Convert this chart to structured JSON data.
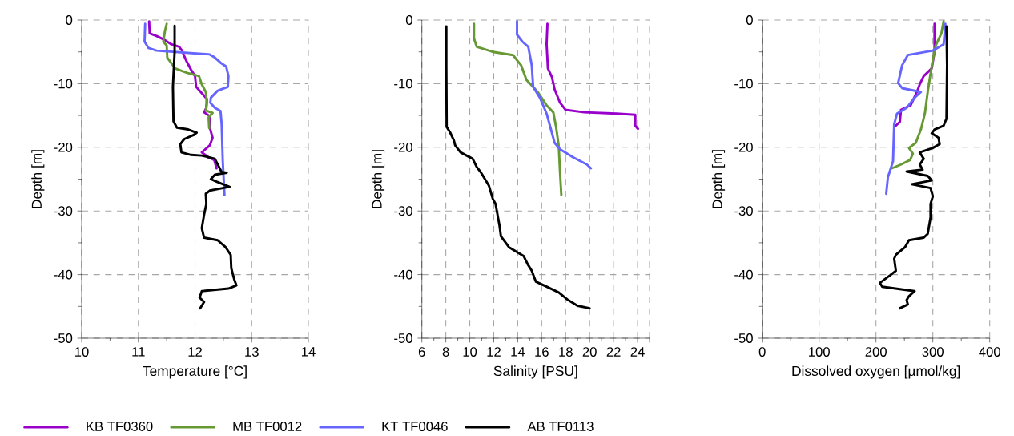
{
  "chart_data": [
    {
      "type": "line",
      "xlabel": "Temperature [°C]",
      "ylabel": "Depth [m]",
      "xlim": [
        10,
        14
      ],
      "ylim": [
        -50,
        0
      ],
      "xticks": [
        10,
        11,
        12,
        13,
        14
      ],
      "yticks": [
        -50,
        -40,
        -30,
        -20,
        -10,
        0
      ],
      "grid": true,
      "legend": "bottom",
      "series": [
        {
          "name": "KB TF0360",
          "color": "#9900cc",
          "x": [
            11.19,
            11.2,
            11.32,
            11.46,
            11.58,
            11.72,
            11.77,
            11.84,
            11.93,
            12.0,
            12.02,
            12.12,
            12.21,
            12.2,
            12.16,
            12.26,
            12.27,
            12.31,
            12.26,
            12.12,
            12.24,
            12.34,
            12.38
          ],
          "values": [
            -0.2,
            -2.1,
            -2.5,
            -3.1,
            -3.8,
            -4.2,
            -4.8,
            -6.3,
            -7.8,
            -8.8,
            -10.5,
            -11.5,
            -12.4,
            -13.8,
            -14.5,
            -15.1,
            -17.2,
            -18.5,
            -19.7,
            -20.8,
            -21.6,
            -22.0,
            -23.3
          ]
        },
        {
          "name": "MB TF0012",
          "color": "#669933",
          "x": [
            11.5,
            11.47,
            11.44,
            11.5,
            11.51,
            11.65,
            11.86,
            12.07,
            12.12,
            12.19,
            12.21,
            12.19,
            12.31,
            12.24,
            12.25
          ],
          "values": [
            -0.6,
            -1.7,
            -3.4,
            -4.0,
            -5.9,
            -7.6,
            -8.3,
            -8.8,
            -10.1,
            -11.3,
            -13.0,
            -14.2,
            -14.6,
            -15.3,
            -17.0
          ]
        },
        {
          "name": "KT TF0046",
          "color": "#6666ff",
          "x": [
            11.12,
            11.11,
            11.18,
            11.32,
            12.26,
            12.35,
            12.45,
            12.55,
            12.59,
            12.58,
            12.4,
            12.28,
            12.27,
            12.35,
            12.45,
            12.47,
            12.49,
            12.52
          ],
          "values": [
            -0.6,
            -3.4,
            -4.4,
            -4.8,
            -5.4,
            -5.9,
            -6.7,
            -7.3,
            -8.8,
            -10.5,
            -11.1,
            -12.2,
            -13.0,
            -13.8,
            -14.3,
            -16.4,
            -22.2,
            -27.5
          ]
        },
        {
          "name": "AB TF0113",
          "color": "#000000",
          "x": [
            11.64,
            11.64,
            11.61,
            11.62,
            11.68,
            11.88,
            12.03,
            11.97,
            11.81,
            11.74,
            11.76,
            11.93,
            12.12,
            12.35,
            12.47,
            12.56,
            12.35,
            12.28,
            12.38,
            12.61,
            12.49,
            12.26,
            12.19,
            12.2,
            12.16,
            12.12,
            12.16,
            12.4,
            12.54,
            12.63,
            12.64,
            12.69,
            12.73,
            12.59,
            12.12,
            12.08,
            12.16,
            12.09
          ],
          "values": [
            -0.9,
            -5.0,
            -10.5,
            -15.9,
            -16.9,
            -17.2,
            -17.7,
            -18.1,
            -18.7,
            -19.5,
            -20.8,
            -21.2,
            -21.3,
            -21.8,
            -23.9,
            -24.0,
            -24.3,
            -25.0,
            -25.4,
            -26.2,
            -26.4,
            -26.8,
            -27.3,
            -28.9,
            -30.6,
            -32.7,
            -34.2,
            -34.6,
            -35.7,
            -36.9,
            -39.0,
            -40.7,
            -41.7,
            -42.2,
            -42.6,
            -43.6,
            -44.3,
            -45.3
          ]
        }
      ]
    },
    {
      "type": "line",
      "xlabel": "Salinity [PSU]",
      "ylabel": "Depth [m]",
      "xlim": [
        6,
        25
      ],
      "ylim": [
        -50,
        0
      ],
      "xticks": [
        6,
        8,
        10,
        12,
        14,
        16,
        18,
        20,
        22,
        24,
        {
          "value": 25,
          "label": null
        }
      ],
      "yticks": [
        -50,
        -40,
        -30,
        -20,
        -10,
        0
      ],
      "grid": true,
      "series": [
        {
          "color": "#9900cc",
          "x": [
            16.48,
            16.41,
            16.52,
            16.86,
            17.08,
            17.53,
            17.98,
            19.55,
            22.24,
            23.81,
            23.81,
            24.03
          ],
          "values": [
            -0.6,
            -3.8,
            -7.6,
            -9.0,
            -10.9,
            -13.0,
            -14.1,
            -14.5,
            -14.7,
            -14.9,
            -16.6,
            -17.1
          ]
        },
        {
          "color": "#669933",
          "x": [
            10.35,
            10.35,
            10.58,
            11.92,
            13.61,
            13.94,
            14.28,
            14.73,
            15.29,
            15.74,
            16.41,
            16.97,
            17.2,
            17.42,
            17.53,
            17.64
          ],
          "values": [
            -0.6,
            -2.9,
            -4.2,
            -5.0,
            -5.5,
            -6.3,
            -7.1,
            -9.4,
            -10.5,
            -11.5,
            -13.4,
            -14.5,
            -16.8,
            -19.7,
            -23.9,
            -27.5
          ]
        },
        {
          "color": "#6666ff",
          "x": [
            13.94,
            13.94,
            14.39,
            14.88,
            15.17,
            15.29,
            15.85,
            16.41,
            17.08,
            17.53,
            18.65,
            19.77,
            20.11
          ],
          "values": [
            -0.2,
            -2.3,
            -3.4,
            -4.2,
            -7.1,
            -10.5,
            -12.2,
            -14.7,
            -19.3,
            -20.3,
            -21.6,
            -22.7,
            -23.3
          ]
        },
        {
          "color": "#000000",
          "x": [
            8.04,
            8.04,
            8.07,
            8.34,
            8.67,
            8.78,
            9.23,
            10.24,
            10.58,
            10.91,
            11.59,
            11.92,
            12.15,
            12.48,
            12.6,
            13.27,
            14.5,
            14.84,
            15.17,
            15.51,
            16.41,
            17.42,
            18.2,
            18.99,
            20.0
          ],
          "values": [
            -1.0,
            -7.1,
            -16.8,
            -17.6,
            -18.9,
            -19.7,
            -20.8,
            -21.8,
            -23.1,
            -23.9,
            -26.0,
            -28.1,
            -28.9,
            -32.3,
            -34.0,
            -35.7,
            -37.1,
            -38.4,
            -39.4,
            -41.1,
            -41.9,
            -42.8,
            -44.0,
            -44.9,
            -45.3
          ]
        }
      ]
    },
    {
      "type": "line",
      "xlabel": "Dissolved oxygen [µmol/kg]",
      "ylabel": "Depth [m]",
      "xlim": [
        0,
        400
      ],
      "ylim": [
        -50,
        0
      ],
      "xticks": [
        0,
        100,
        200,
        300,
        400
      ],
      "yticks": [
        -50,
        -40,
        -30,
        -20,
        -10,
        0
      ],
      "grid": true,
      "series": [
        {
          "color": "#9900cc",
          "x": [
            303,
            303,
            298,
            284,
            277,
            272,
            261,
            244,
            242,
            235
          ],
          "values": [
            -0.6,
            -5.0,
            -7.6,
            -8.8,
            -10.1,
            -11.3,
            -13.4,
            -14.1,
            -16.0,
            -16.6
          ]
        },
        {
          "color": "#669933",
          "x": [
            319,
            315,
            305,
            300,
            296,
            291,
            286,
            279,
            270,
            258,
            265,
            260,
            244,
            228
          ],
          "values": [
            -0.2,
            -2.1,
            -4.0,
            -6.3,
            -8.4,
            -11.3,
            -14.7,
            -17.2,
            -19.3,
            -20.1,
            -21.0,
            -22.0,
            -22.7,
            -23.3
          ]
        },
        {
          "color": "#6666ff",
          "x": [
            322,
            319,
            300,
            256,
            246,
            239,
            246,
            279,
            268,
            254,
            237,
            232,
            230,
            221,
            218
          ],
          "values": [
            -0.6,
            -3.8,
            -4.8,
            -5.5,
            -7.1,
            -9.9,
            -10.7,
            -11.3,
            -12.2,
            -13.8,
            -14.7,
            -16.4,
            -22.2,
            -24.7,
            -27.3
          ]
        },
        {
          "color": "#000000",
          "x": [
            324,
            325,
            324,
            319,
            303,
            298,
            310,
            312,
            300,
            277,
            284,
            277,
            282,
            254,
            291,
            298,
            263,
            296,
            300,
            296,
            296,
            291,
            284,
            258,
            251,
            235,
            232,
            235,
            225,
            207,
            211,
            268,
            258,
            254,
            256,
            242
          ],
          "values": [
            -1.0,
            -7.1,
            -15.5,
            -16.6,
            -17.2,
            -17.8,
            -18.5,
            -19.5,
            -20.1,
            -20.8,
            -21.8,
            -22.7,
            -23.5,
            -23.8,
            -24.5,
            -25.2,
            -25.8,
            -26.4,
            -27.7,
            -28.9,
            -31.0,
            -33.6,
            -34.2,
            -34.6,
            -35.7,
            -36.9,
            -37.5,
            -39.4,
            -40.1,
            -41.3,
            -41.9,
            -42.6,
            -43.4,
            -44.0,
            -44.7,
            -45.3
          ]
        }
      ]
    }
  ]
}
